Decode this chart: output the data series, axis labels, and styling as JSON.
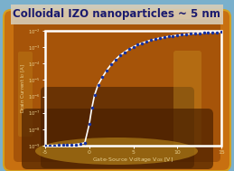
{
  "title": "Colloidal IZO nanoparticles ~ 5 nm",
  "title_color": "#1a1a6e",
  "title_fontsize": 8.5,
  "title_bg": "#e8e0d0",
  "bg_color": "#7ab0cc",
  "xlabel": "Gate-Source Voltage V$_{GS}$ [V]",
  "ylabel": "Drain Current I$_D$ [A]",
  "xlabel_color": "#e8d090",
  "ylabel_color": "#e8d090",
  "xlim": [
    -5,
    15
  ],
  "ylim_log_min": -9,
  "ylim_log_max": -2,
  "x_ticks": [
    -5,
    0,
    5,
    10,
    15
  ],
  "y_tick_vals": [
    1e-09,
    1e-08,
    1e-07,
    1e-06,
    1e-05,
    0.0001,
    0.001,
    0.01
  ],
  "y_tick_labels": [
    "10",
    "10",
    "10",
    "10",
    "10",
    "10",
    "10",
    "10"
  ],
  "plot_box_color": "#ffffff",
  "line_color": "#ffffff",
  "dot_color": "#1530a0",
  "dot_size": 2.5,
  "line_width": 1.2,
  "vgs_data": [
    -5,
    -4.5,
    -4,
    -3.5,
    -3,
    -2.5,
    -2,
    -1.5,
    -1,
    -0.5,
    0,
    0.3,
    0.6,
    1.0,
    1.5,
    2,
    2.5,
    3,
    3.5,
    4,
    4.5,
    5,
    5.5,
    6,
    6.5,
    7,
    7.5,
    8,
    8.5,
    9,
    9.5,
    10,
    10.5,
    11,
    11.5,
    12,
    12.5,
    13,
    13.5,
    14,
    14.5,
    15
  ],
  "id_data": [
    1e-09,
    1.05e-09,
    1.05e-09,
    1.1e-09,
    1.1e-09,
    1.1e-09,
    1.15e-09,
    1.2e-09,
    1.3e-09,
    1.5e-09,
    2e-08,
    2e-07,
    1.2e-06,
    5e-06,
    1.5e-05,
    4e-05,
    9e-05,
    0.00018,
    0.00032,
    0.0005,
    0.00075,
    0.00105,
    0.0014,
    0.0018,
    0.0022,
    0.0027,
    0.0031,
    0.0036,
    0.004,
    0.0045,
    0.0049,
    0.0053,
    0.0057,
    0.0061,
    0.0065,
    0.0069,
    0.0072,
    0.0075,
    0.0078,
    0.008,
    0.0082,
    0.0084
  ],
  "vial_amber1": "#c87010",
  "vial_amber2": "#a05008",
  "vial_amber3": "#7a3800",
  "vial_amber4": "#c89020",
  "vial_dark": "#3a1800",
  "vial_gold": "#d4a020"
}
